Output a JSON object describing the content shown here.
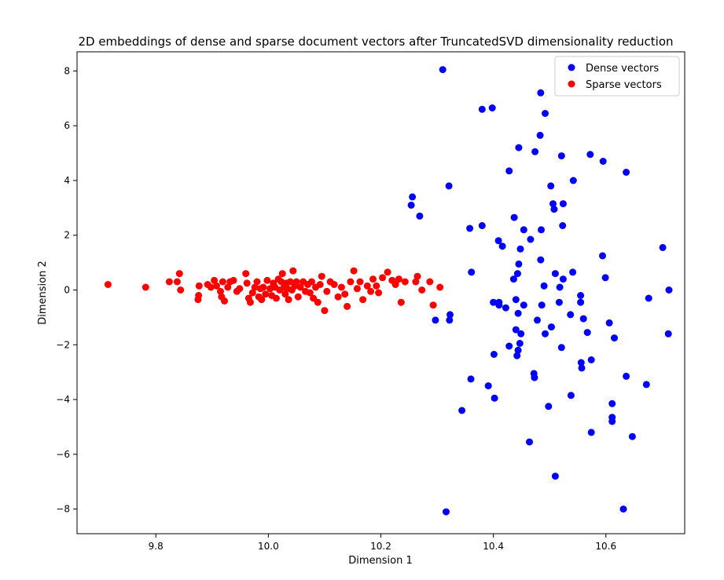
{
  "chart_data": {
    "type": "scatter",
    "title": "2D embeddings of dense and sparse document vectors after TruncatedSVD dimensionality reduction",
    "xlabel": "Dimension 1",
    "ylabel": "Dimension 2",
    "xlim": [
      9.66,
      10.74
    ],
    "ylim": [
      -8.9,
      8.7
    ],
    "x_ticks": [
      9.8,
      10.0,
      10.2,
      10.4,
      10.6
    ],
    "y_ticks": [
      -8,
      -6,
      -4,
      -2,
      0,
      2,
      4,
      6,
      8
    ],
    "x_tick_labels": [
      "9.8",
      "10.0",
      "10.2",
      "10.4",
      "10.6"
    ],
    "y_tick_labels": [
      "−8",
      "−6",
      "−4",
      "−2",
      "0",
      "2",
      "4",
      "6",
      "8"
    ],
    "grid": false,
    "legend_position": "upper-right",
    "series": [
      {
        "name": "Dense vectors",
        "color": "#0000ff",
        "points": [
          [
            10.31,
            8.05
          ],
          [
            10.484,
            7.2
          ],
          [
            10.38,
            6.6
          ],
          [
            10.398,
            6.65
          ],
          [
            10.492,
            6.45
          ],
          [
            10.483,
            5.65
          ],
          [
            10.445,
            5.2
          ],
          [
            10.474,
            5.05
          ],
          [
            10.521,
            4.9
          ],
          [
            10.572,
            4.95
          ],
          [
            10.595,
            4.7
          ],
          [
            10.428,
            4.35
          ],
          [
            10.636,
            4.3
          ],
          [
            10.542,
            4.0
          ],
          [
            10.321,
            3.8
          ],
          [
            10.502,
            3.8
          ],
          [
            10.256,
            3.4
          ],
          [
            10.254,
            3.1
          ],
          [
            10.506,
            3.15
          ],
          [
            10.508,
            2.95
          ],
          [
            10.524,
            3.15
          ],
          [
            10.269,
            2.7
          ],
          [
            10.437,
            2.65
          ],
          [
            10.358,
            2.25
          ],
          [
            10.38,
            2.35
          ],
          [
            10.454,
            2.2
          ],
          [
            10.485,
            2.2
          ],
          [
            10.523,
            2.35
          ],
          [
            10.409,
            1.8
          ],
          [
            10.416,
            1.6
          ],
          [
            10.448,
            1.5
          ],
          [
            10.466,
            1.85
          ],
          [
            10.701,
            1.55
          ],
          [
            10.594,
            1.25
          ],
          [
            10.484,
            1.1
          ],
          [
            10.445,
            0.95
          ],
          [
            10.361,
            0.65
          ],
          [
            10.443,
            0.6
          ],
          [
            10.436,
            0.4
          ],
          [
            10.51,
            0.6
          ],
          [
            10.524,
            0.4
          ],
          [
            10.541,
            0.65
          ],
          [
            10.599,
            0.45
          ],
          [
            10.49,
            0.15
          ],
          [
            10.518,
            0.1
          ],
          [
            10.712,
            0.0
          ],
          [
            10.676,
            -0.3
          ],
          [
            10.555,
            -0.2
          ],
          [
            10.555,
            -0.45
          ],
          [
            10.517,
            -0.45
          ],
          [
            10.486,
            -0.55
          ],
          [
            10.4,
            -0.45
          ],
          [
            10.41,
            -0.45
          ],
          [
            10.41,
            -0.55
          ],
          [
            10.422,
            -0.65
          ],
          [
            10.44,
            -0.35
          ],
          [
            10.454,
            -0.55
          ],
          [
            10.444,
            -0.85
          ],
          [
            10.297,
            -1.1
          ],
          [
            10.322,
            -1.1
          ],
          [
            10.323,
            -0.9
          ],
          [
            10.478,
            -1.1
          ],
          [
            10.503,
            -1.35
          ],
          [
            10.537,
            -0.9
          ],
          [
            10.56,
            -1.05
          ],
          [
            10.606,
            -1.2
          ],
          [
            10.44,
            -1.45
          ],
          [
            10.449,
            -1.6
          ],
          [
            10.492,
            -1.6
          ],
          [
            10.567,
            -1.55
          ],
          [
            10.615,
            -1.75
          ],
          [
            10.711,
            -1.6
          ],
          [
            10.447,
            -1.95
          ],
          [
            10.428,
            -2.05
          ],
          [
            10.444,
            -2.2
          ],
          [
            10.442,
            -2.4
          ],
          [
            10.401,
            -2.35
          ],
          [
            10.521,
            -2.1
          ],
          [
            10.556,
            -2.65
          ],
          [
            10.557,
            -2.85
          ],
          [
            10.574,
            -2.55
          ],
          [
            10.472,
            -3.05
          ],
          [
            10.473,
            -3.2
          ],
          [
            10.36,
            -3.25
          ],
          [
            10.391,
            -3.5
          ],
          [
            10.402,
            -3.95
          ],
          [
            10.344,
            -4.4
          ],
          [
            10.498,
            -4.25
          ],
          [
            10.538,
            -3.85
          ],
          [
            10.636,
            -3.15
          ],
          [
            10.672,
            -3.45
          ],
          [
            10.611,
            -4.15
          ],
          [
            10.611,
            -4.65
          ],
          [
            10.611,
            -4.8
          ],
          [
            10.574,
            -5.2
          ],
          [
            10.647,
            -5.35
          ],
          [
            10.464,
            -5.55
          ],
          [
            10.51,
            -6.8
          ],
          [
            10.316,
            -8.1
          ],
          [
            10.631,
            -8.0
          ]
        ]
      },
      {
        "name": "Sparse vectors",
        "color": "#ff0000",
        "points": [
          [
            9.715,
            0.2
          ],
          [
            9.782,
            0.1
          ],
          [
            9.824,
            0.3
          ],
          [
            9.842,
            0.6
          ],
          [
            9.838,
            0.3
          ],
          [
            9.844,
            0.0
          ],
          [
            9.877,
            0.15
          ],
          [
            9.876,
            -0.2
          ],
          [
            9.875,
            -0.35
          ],
          [
            9.892,
            0.2
          ],
          [
            9.898,
            0.1
          ],
          [
            9.904,
            0.35
          ],
          [
            9.908,
            0.15
          ],
          [
            9.915,
            -0.05
          ],
          [
            9.917,
            -0.25
          ],
          [
            9.919,
            0.3
          ],
          [
            9.922,
            -0.4
          ],
          [
            9.928,
            0.1
          ],
          [
            9.932,
            0.3
          ],
          [
            9.938,
            0.35
          ],
          [
            9.944,
            -0.05
          ],
          [
            9.949,
            0.05
          ],
          [
            9.962,
            0.25
          ],
          [
            9.96,
            0.6
          ],
          [
            9.965,
            -0.3
          ],
          [
            9.968,
            -0.45
          ],
          [
            9.972,
            -0.1
          ],
          [
            9.976,
            0.1
          ],
          [
            9.98,
            0.3
          ],
          [
            9.983,
            -0.25
          ],
          [
            9.986,
            0.05
          ],
          [
            9.988,
            -0.35
          ],
          [
            9.991,
            0.1
          ],
          [
            9.995,
            -0.15
          ],
          [
            9.998,
            0.35
          ],
          [
            10.003,
            0.05
          ],
          [
            10.006,
            -0.2
          ],
          [
            10.009,
            0.25
          ],
          [
            10.012,
            0.1
          ],
          [
            10.014,
            -0.3
          ],
          [
            10.018,
            0.4
          ],
          [
            10.02,
            0.0
          ],
          [
            10.023,
            0.3
          ],
          [
            10.025,
            0.6
          ],
          [
            10.028,
            0.1
          ],
          [
            10.03,
            -0.15
          ],
          [
            10.032,
            0.25
          ],
          [
            10.034,
            0.05
          ],
          [
            10.036,
            -0.35
          ],
          [
            10.039,
            0.3
          ],
          [
            10.042,
            0.0
          ],
          [
            10.044,
            0.7
          ],
          [
            10.047,
            0.15
          ],
          [
            10.05,
            0.3
          ],
          [
            10.053,
            -0.25
          ],
          [
            10.057,
            0.1
          ],
          [
            10.062,
            0.3
          ],
          [
            10.066,
            -0.05
          ],
          [
            10.07,
            0.2
          ],
          [
            10.074,
            -0.1
          ],
          [
            10.077,
            0.3
          ],
          [
            10.08,
            -0.3
          ],
          [
            10.084,
            0.1
          ],
          [
            10.088,
            -0.45
          ],
          [
            10.092,
            0.2
          ],
          [
            10.095,
            0.5
          ],
          [
            10.1,
            -0.75
          ],
          [
            10.104,
            -0.05
          ],
          [
            10.11,
            0.3
          ],
          [
            10.117,
            0.2
          ],
          [
            10.124,
            -0.25
          ],
          [
            10.13,
            0.1
          ],
          [
            10.136,
            -0.15
          ],
          [
            10.14,
            -0.6
          ],
          [
            10.146,
            0.3
          ],
          [
            10.152,
            0.7
          ],
          [
            10.158,
            0.05
          ],
          [
            10.163,
            0.3
          ],
          [
            10.168,
            -0.35
          ],
          [
            10.176,
            0.15
          ],
          [
            10.182,
            -0.05
          ],
          [
            10.186,
            0.4
          ],
          [
            10.192,
            0.15
          ],
          [
            10.196,
            -0.1
          ],
          [
            10.203,
            0.45
          ],
          [
            10.212,
            0.65
          ],
          [
            10.22,
            0.35
          ],
          [
            10.226,
            0.2
          ],
          [
            10.232,
            0.4
          ],
          [
            10.236,
            -0.45
          ],
          [
            10.243,
            0.3
          ],
          [
            10.262,
            0.3
          ],
          [
            10.265,
            0.5
          ],
          [
            10.273,
            0.0
          ],
          [
            10.287,
            0.3
          ],
          [
            10.293,
            -0.55
          ],
          [
            10.305,
            0.1
          ]
        ]
      }
    ]
  }
}
